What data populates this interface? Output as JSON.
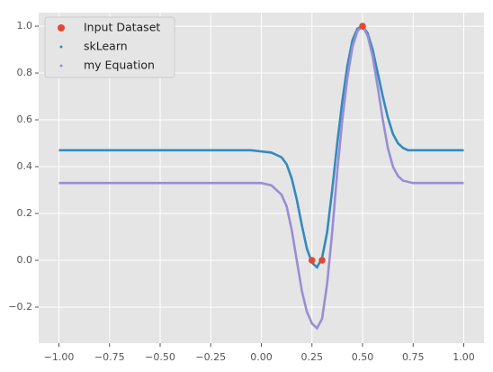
{
  "chart_data": {
    "type": "scatter",
    "xlim": [
      -1.1,
      1.1
    ],
    "ylim": [
      -0.354,
      1.058
    ],
    "xticks": [
      {
        "value": -1,
        "label": "−1.00"
      },
      {
        "value": -0.75,
        "label": "−0.75"
      },
      {
        "value": -0.5,
        "label": "−0.50"
      },
      {
        "value": -0.25,
        "label": "−0.25"
      },
      {
        "value": 0,
        "label": "0.00"
      },
      {
        "value": 0.25,
        "label": "0.25"
      },
      {
        "value": 0.5,
        "label": "0.50"
      },
      {
        "value": 0.75,
        "label": "0.75"
      },
      {
        "value": 1,
        "label": "1.00"
      }
    ],
    "yticks": [
      {
        "value": -0.2,
        "label": "−0.2"
      },
      {
        "value": 0,
        "label": "0.0"
      },
      0.2,
      0.4,
      0.6,
      0.8,
      {
        "value": 1,
        "label": "1.0"
      }
    ],
    "grid": true,
    "legend": "upper left",
    "series": [
      {
        "name": "Input Dataset",
        "type": "scatter",
        "color": "#E24A33",
        "x": [
          0.25,
          0.3,
          0.5
        ],
        "values": [
          0,
          0,
          1
        ]
      },
      {
        "name": "skLearn",
        "type": "line",
        "color": "#348ABD",
        "x": [
          -1,
          -0.5,
          -0.05,
          0,
          0.05,
          0.1,
          0.125,
          0.15,
          0.175,
          0.2,
          0.225,
          0.25,
          0.275,
          0.3,
          0.325,
          0.35,
          0.375,
          0.4,
          0.425,
          0.45,
          0.475,
          0.5,
          0.525,
          0.55,
          0.575,
          0.6,
          0.625,
          0.65,
          0.675,
          0.7,
          0.725,
          0.75,
          1
        ],
        "values": [
          0.47,
          0.47,
          0.47,
          0.465,
          0.46,
          0.44,
          0.41,
          0.35,
          0.26,
          0.15,
          0.05,
          -0.01,
          -0.03,
          0.01,
          0.12,
          0.3,
          0.5,
          0.68,
          0.83,
          0.94,
          0.99,
          1.0,
          0.97,
          0.9,
          0.8,
          0.7,
          0.61,
          0.54,
          0.5,
          0.48,
          0.47,
          0.47,
          0.47
        ]
      },
      {
        "name": "my Equation",
        "type": "line",
        "color": "#988ED5",
        "x": [
          -1,
          -0.5,
          -0.05,
          0,
          0.05,
          0.1,
          0.125,
          0.15,
          0.175,
          0.2,
          0.225,
          0.25,
          0.275,
          0.3,
          0.325,
          0.35,
          0.375,
          0.4,
          0.425,
          0.45,
          0.475,
          0.5,
          0.525,
          0.55,
          0.575,
          0.6,
          0.625,
          0.65,
          0.675,
          0.7,
          0.725,
          0.75,
          1
        ],
        "values": [
          0.33,
          0.33,
          0.33,
          0.33,
          0.32,
          0.28,
          0.23,
          0.13,
          0.0,
          -0.13,
          -0.22,
          -0.27,
          -0.29,
          -0.25,
          -0.1,
          0.12,
          0.38,
          0.6,
          0.78,
          0.91,
          0.98,
          1.0,
          0.96,
          0.87,
          0.74,
          0.6,
          0.48,
          0.4,
          0.36,
          0.34,
          0.335,
          0.33,
          0.33
        ]
      }
    ]
  }
}
